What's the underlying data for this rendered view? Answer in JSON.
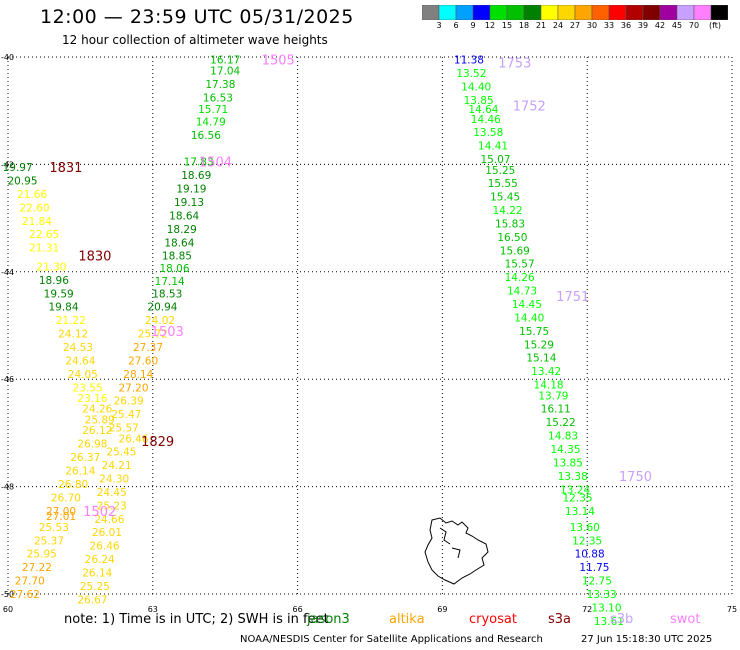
{
  "header": {
    "title": "12:00 — 23:59 UTC 05/31/2025",
    "subtitle": "12 hour collection of altimeter wave heights"
  },
  "colorbar": {
    "colors": [
      "#808080",
      "#00ffff",
      "#00a0ff",
      "#0000ff",
      "#00e000",
      "#00c000",
      "#008000",
      "#ffff00",
      "#ffd700",
      "#ffa500",
      "#ff6000",
      "#ff0000",
      "#b00000",
      "#800000",
      "#a000a0",
      "#c8a0ff",
      "#ff80ff",
      "#000000"
    ],
    "labels": [
      "3",
      "6",
      "9",
      "12",
      "15",
      "18",
      "21",
      "24",
      "27",
      "30",
      "33",
      "36",
      "39",
      "42",
      "45",
      "70",
      "(ft)"
    ]
  },
  "chart_data": {
    "type": "scatter",
    "title": "12:00 — 23:59 UTC 05/31/2025",
    "x_ticks": [
      "60",
      "63",
      "66",
      "69",
      "72",
      "75"
    ],
    "y_ticks": [
      "-40",
      "-42",
      "-44",
      "-46",
      "-48",
      "-50"
    ],
    "xlim": [
      60,
      75
    ],
    "ylim": [
      -50,
      -40
    ],
    "grid": true,
    "track_labels": [
      {
        "text": "1505",
        "x": 65.6,
        "y": -40.05,
        "color": "#ff80ff"
      },
      {
        "text": "1504",
        "x": 64.3,
        "y": -41.95,
        "color": "#ff80ff"
      },
      {
        "text": "1503",
        "x": 63.3,
        "y": -45.1,
        "color": "#ff80ff"
      },
      {
        "text": "1502",
        "x": 61.9,
        "y": -48.45,
        "color": "#ff80ff"
      },
      {
        "text": "1831",
        "x": 61.2,
        "y": -42.05,
        "color": "#800000"
      },
      {
        "text": "1830",
        "x": 61.8,
        "y": -43.7,
        "color": "#800000"
      },
      {
        "text": "1829",
        "x": 63.1,
        "y": -47.15,
        "color": "#800000"
      },
      {
        "text": "1753",
        "x": 70.5,
        "y": -40.1,
        "color": "#c8a0ff"
      },
      {
        "text": "1752",
        "x": 70.8,
        "y": -40.9,
        "color": "#c8a0ff"
      },
      {
        "text": "1751",
        "x": 71.7,
        "y": -44.45,
        "color": "#c8a0ff"
      },
      {
        "text": "1750",
        "x": 73.0,
        "y": -47.8,
        "color": "#c8a0ff"
      }
    ],
    "points": [
      {
        "x": 64.5,
        "y": -40.05,
        "value": "16.17",
        "color": "#00c000"
      },
      {
        "x": 64.5,
        "y": -40.25,
        "value": "17.04",
        "color": "#00c000"
      },
      {
        "x": 64.4,
        "y": -40.5,
        "value": "17.38",
        "color": "#00c000"
      },
      {
        "x": 64.35,
        "y": -40.75,
        "value": "16.53",
        "color": "#00c000"
      },
      {
        "x": 64.25,
        "y": -40.97,
        "value": "15.71",
        "color": "#00e000"
      },
      {
        "x": 64.2,
        "y": -41.2,
        "value": "14.79",
        "color": "#00e000"
      },
      {
        "x": 64.1,
        "y": -41.45,
        "value": "16.56",
        "color": "#00c000"
      },
      {
        "x": 63.95,
        "y": -41.95,
        "value": "17.83",
        "color": "#00c000"
      },
      {
        "x": 63.9,
        "y": -42.2,
        "value": "18.69",
        "color": "#008000"
      },
      {
        "x": 63.8,
        "y": -42.45,
        "value": "19.19",
        "color": "#008000"
      },
      {
        "x": 63.75,
        "y": -42.7,
        "value": "19.13",
        "color": "#008000"
      },
      {
        "x": 63.65,
        "y": -42.95,
        "value": "18.64",
        "color": "#008000"
      },
      {
        "x": 63.6,
        "y": -43.2,
        "value": "18.29",
        "color": "#008000"
      },
      {
        "x": 63.55,
        "y": -43.45,
        "value": "18.64",
        "color": "#008000"
      },
      {
        "x": 63.5,
        "y": -43.7,
        "value": "18.85",
        "color": "#008000"
      },
      {
        "x": 63.45,
        "y": -43.93,
        "value": "18.06",
        "color": "#00c000"
      },
      {
        "x": 63.35,
        "y": -44.17,
        "value": "17.14",
        "color": "#00c000"
      },
      {
        "x": 63.3,
        "y": -44.4,
        "value": "18.53",
        "color": "#008000"
      },
      {
        "x": 63.2,
        "y": -44.65,
        "value": "20.94",
        "color": "#008000"
      },
      {
        "x": 63.15,
        "y": -44.9,
        "value": "24.02",
        "color": "#ffd700"
      },
      {
        "x": 63.0,
        "y": -45.15,
        "value": "25.72",
        "color": "#ffd700"
      },
      {
        "x": 62.9,
        "y": -45.4,
        "value": "27.37",
        "color": "#ffa500"
      },
      {
        "x": 62.8,
        "y": -45.65,
        "value": "27.60",
        "color": "#ffa500"
      },
      {
        "x": 62.7,
        "y": -45.9,
        "value": "28.14",
        "color": "#ffa500"
      },
      {
        "x": 62.6,
        "y": -46.15,
        "value": "27.20",
        "color": "#ffa500"
      },
      {
        "x": 62.5,
        "y": -46.4,
        "value": "26.39",
        "color": "#ffd700"
      },
      {
        "x": 62.45,
        "y": -46.65,
        "value": "25.47",
        "color": "#ffd700"
      },
      {
        "x": 62.4,
        "y": -46.9,
        "value": "25.57",
        "color": "#ffd700"
      },
      {
        "x": 62.6,
        "y": -47.1,
        "value": "26.46",
        "color": "#ffd700"
      },
      {
        "x": 62.35,
        "y": -47.35,
        "value": "25.45",
        "color": "#ffd700"
      },
      {
        "x": 62.25,
        "y": -47.6,
        "value": "24.21",
        "color": "#ffd700"
      },
      {
        "x": 62.2,
        "y": -47.85,
        "value": "24.30",
        "color": "#ffd700"
      },
      {
        "x": 62.15,
        "y": -48.1,
        "value": "24.45",
        "color": "#ffd700"
      },
      {
        "x": 62.15,
        "y": -48.35,
        "value": "25.23",
        "color": "#ffd700"
      },
      {
        "x": 62.1,
        "y": -48.6,
        "value": "24.66",
        "color": "#ffd700"
      },
      {
        "x": 62.05,
        "y": -48.85,
        "value": "26.01",
        "color": "#ffd700"
      },
      {
        "x": 62.0,
        "y": -49.1,
        "value": "26.46",
        "color": "#ffd700"
      },
      {
        "x": 61.9,
        "y": -49.35,
        "value": "26.24",
        "color": "#ffd700"
      },
      {
        "x": 61.85,
        "y": -49.6,
        "value": "26.14",
        "color": "#ffd700"
      },
      {
        "x": 61.8,
        "y": -49.85,
        "value": "25.25",
        "color": "#ffd700"
      },
      {
        "x": 61.75,
        "y": -50.1,
        "value": "26.67",
        "color": "#ffd700"
      },
      {
        "x": 60.2,
        "y": -42.05,
        "value": "19.97",
        "color": "#008000"
      },
      {
        "x": 60.3,
        "y": -42.3,
        "value": "20.95",
        "color": "#008000"
      },
      {
        "x": 60.5,
        "y": -42.55,
        "value": "21.66",
        "color": "#ffff00"
      },
      {
        "x": 60.55,
        "y": -42.8,
        "value": "22.60",
        "color": "#ffff00"
      },
      {
        "x": 60.6,
        "y": -43.05,
        "value": "21.84",
        "color": "#ffff00"
      },
      {
        "x": 60.75,
        "y": -43.3,
        "value": "22.65",
        "color": "#ffff00"
      },
      {
        "x": 60.75,
        "y": -43.55,
        "value": "21.31",
        "color": "#ffff00"
      },
      {
        "x": 60.9,
        "y": -43.9,
        "value": "21.30",
        "color": "#ffff00"
      },
      {
        "x": 60.95,
        "y": -44.15,
        "value": "18.96",
        "color": "#008000"
      },
      {
        "x": 61.05,
        "y": -44.4,
        "value": "19.59",
        "color": "#008000"
      },
      {
        "x": 61.15,
        "y": -44.65,
        "value": "19.84",
        "color": "#008000"
      },
      {
        "x": 61.3,
        "y": -44.9,
        "value": "21.22",
        "color": "#ffff00"
      },
      {
        "x": 61.35,
        "y": -45.15,
        "value": "24.12",
        "color": "#ffd700"
      },
      {
        "x": 61.45,
        "y": -45.4,
        "value": "24.53",
        "color": "#ffd700"
      },
      {
        "x": 61.5,
        "y": -45.65,
        "value": "24.64",
        "color": "#ffd700"
      },
      {
        "x": 61.55,
        "y": -45.9,
        "value": "24.05",
        "color": "#ffd700"
      },
      {
        "x": 61.65,
        "y": -46.15,
        "value": "23.55",
        "color": "#ffff00"
      },
      {
        "x": 61.75,
        "y": -46.35,
        "value": "23.16",
        "color": "#ffff00"
      },
      {
        "x": 61.85,
        "y": -46.55,
        "value": "24.26",
        "color": "#ffd700"
      },
      {
        "x": 61.9,
        "y": -46.75,
        "value": "25.89",
        "color": "#ffd700"
      },
      {
        "x": 61.85,
        "y": -46.95,
        "value": "26.12",
        "color": "#ffd700"
      },
      {
        "x": 61.75,
        "y": -47.2,
        "value": "26.98",
        "color": "#ffd700"
      },
      {
        "x": 61.6,
        "y": -47.45,
        "value": "26.37",
        "color": "#ffd700"
      },
      {
        "x": 61.5,
        "y": -47.7,
        "value": "26.14",
        "color": "#ffd700"
      },
      {
        "x": 61.35,
        "y": -47.95,
        "value": "26.80",
        "color": "#ffd700"
      },
      {
        "x": 61.2,
        "y": -48.2,
        "value": "26.70",
        "color": "#ffd700"
      },
      {
        "x": 61.1,
        "y": -48.45,
        "value": "27.00",
        "color": "#ffa500"
      },
      {
        "x": 61.1,
        "y": -48.55,
        "value": "27.01",
        "color": "#ffa500"
      },
      {
        "x": 60.95,
        "y": -48.75,
        "value": "25.53",
        "color": "#ffd700"
      },
      {
        "x": 60.85,
        "y": -49.0,
        "value": "25.37",
        "color": "#ffd700"
      },
      {
        "x": 60.7,
        "y": -49.25,
        "value": "25.95",
        "color": "#ffd700"
      },
      {
        "x": 60.6,
        "y": -49.5,
        "value": "27.22",
        "color": "#ffa500"
      },
      {
        "x": 60.45,
        "y": -49.75,
        "value": "27.70",
        "color": "#ffa500"
      },
      {
        "x": 60.35,
        "y": -50.0,
        "value": "27.62",
        "color": "#ffa500"
      },
      {
        "x": 69.55,
        "y": -40.05,
        "value": "11.38",
        "color": "#0000ff"
      },
      {
        "x": 69.6,
        "y": -40.3,
        "value": "13.52",
        "color": "#00ff00"
      },
      {
        "x": 69.7,
        "y": -40.55,
        "value": "14.40",
        "color": "#00ff00"
      },
      {
        "x": 69.75,
        "y": -40.8,
        "value": "13.85",
        "color": "#00ff00"
      },
      {
        "x": 69.85,
        "y": -40.97,
        "value": "14.64",
        "color": "#00ff00"
      },
      {
        "x": 69.9,
        "y": -41.15,
        "value": "14.46",
        "color": "#00ff00"
      },
      {
        "x": 69.95,
        "y": -41.4,
        "value": "13.58",
        "color": "#00ff00"
      },
      {
        "x": 70.05,
        "y": -41.65,
        "value": "14.41",
        "color": "#00ff00"
      },
      {
        "x": 70.1,
        "y": -41.9,
        "value": "15.07",
        "color": "#00c000"
      },
      {
        "x": 70.2,
        "y": -42.1,
        "value": "15.25",
        "color": "#00c000"
      },
      {
        "x": 70.25,
        "y": -42.35,
        "value": "15.55",
        "color": "#00c000"
      },
      {
        "x": 70.3,
        "y": -42.6,
        "value": "15.45",
        "color": "#00c000"
      },
      {
        "x": 70.35,
        "y": -42.85,
        "value": "14.22",
        "color": "#00ff00"
      },
      {
        "x": 70.4,
        "y": -43.1,
        "value": "15.83",
        "color": "#00c000"
      },
      {
        "x": 70.45,
        "y": -43.35,
        "value": "16.50",
        "color": "#00c000"
      },
      {
        "x": 70.5,
        "y": -43.6,
        "value": "15.69",
        "color": "#00c000"
      },
      {
        "x": 70.6,
        "y": -43.85,
        "value": "15.57",
        "color": "#00c000"
      },
      {
        "x": 70.6,
        "y": -44.1,
        "value": "14.26",
        "color": "#00ff00"
      },
      {
        "x": 70.65,
        "y": -44.35,
        "value": "14.73",
        "color": "#00ff00"
      },
      {
        "x": 70.75,
        "y": -44.6,
        "value": "14.45",
        "color": "#00ff00"
      },
      {
        "x": 70.8,
        "y": -44.85,
        "value": "14.40",
        "color": "#00ff00"
      },
      {
        "x": 70.9,
        "y": -45.1,
        "value": "15.75",
        "color": "#00c000"
      },
      {
        "x": 71.0,
        "y": -45.35,
        "value": "15.29",
        "color": "#00c000"
      },
      {
        "x": 71.05,
        "y": -45.6,
        "value": "15.14",
        "color": "#00c000"
      },
      {
        "x": 71.15,
        "y": -45.85,
        "value": "13.42",
        "color": "#00ff00"
      },
      {
        "x": 71.2,
        "y": -46.1,
        "value": "14.18",
        "color": "#00ff00"
      },
      {
        "x": 71.3,
        "y": -46.3,
        "value": "13.79",
        "color": "#00ff00"
      },
      {
        "x": 71.35,
        "y": -46.55,
        "value": "16.11",
        "color": "#00c000"
      },
      {
        "x": 71.45,
        "y": -46.8,
        "value": "15.22",
        "color": "#00c000"
      },
      {
        "x": 71.5,
        "y": -47.05,
        "value": "14.83",
        "color": "#00ff00"
      },
      {
        "x": 71.55,
        "y": -47.3,
        "value": "14.35",
        "color": "#00ff00"
      },
      {
        "x": 71.6,
        "y": -47.55,
        "value": "13.85",
        "color": "#00ff00"
      },
      {
        "x": 71.7,
        "y": -47.8,
        "value": "13.38",
        "color": "#00ff00"
      },
      {
        "x": 71.75,
        "y": -48.05,
        "value": "13.24",
        "color": "#00ff00"
      },
      {
        "x": 71.8,
        "y": -48.2,
        "value": "12.35",
        "color": "#00ff00"
      },
      {
        "x": 71.85,
        "y": -48.45,
        "value": "13.14",
        "color": "#00ff00"
      },
      {
        "x": 71.95,
        "y": -48.75,
        "value": "13.60",
        "color": "#00ff00"
      },
      {
        "x": 72.0,
        "y": -49.0,
        "value": "12.35",
        "color": "#00ff00"
      },
      {
        "x": 72.05,
        "y": -49.25,
        "value": "10.88",
        "color": "#0000ff"
      },
      {
        "x": 72.15,
        "y": -49.5,
        "value": "11.75",
        "color": "#0000ff"
      },
      {
        "x": 72.2,
        "y": -49.75,
        "value": "12.75",
        "color": "#00ff00"
      },
      {
        "x": 72.3,
        "y": -50.0,
        "value": "13.33",
        "color": "#00ff00"
      },
      {
        "x": 72.4,
        "y": -50.25,
        "value": "13.10",
        "color": "#00ff00"
      },
      {
        "x": 72.45,
        "y": -50.5,
        "value": "13.61",
        "color": "#00ff00"
      }
    ]
  },
  "footer": {
    "note": "note:  1) Time is in UTC; 2) SWH is in feet",
    "satellites": [
      {
        "name": "jason3",
        "color": "#008000"
      },
      {
        "name": "altika",
        "color": "#ffa500"
      },
      {
        "name": "cryosat",
        "color": "#ff0000"
      },
      {
        "name": "s3a",
        "color": "#800000"
      },
      {
        "name": "s3b",
        "color": "#c8a0ff"
      },
      {
        "name": "swot",
        "color": "#ff80ff"
      }
    ],
    "credit": "NOAA/NESDIS Center for Satellite Applications and Research",
    "timestamp": "27 Jun 15:18:30 UTC 2025"
  }
}
